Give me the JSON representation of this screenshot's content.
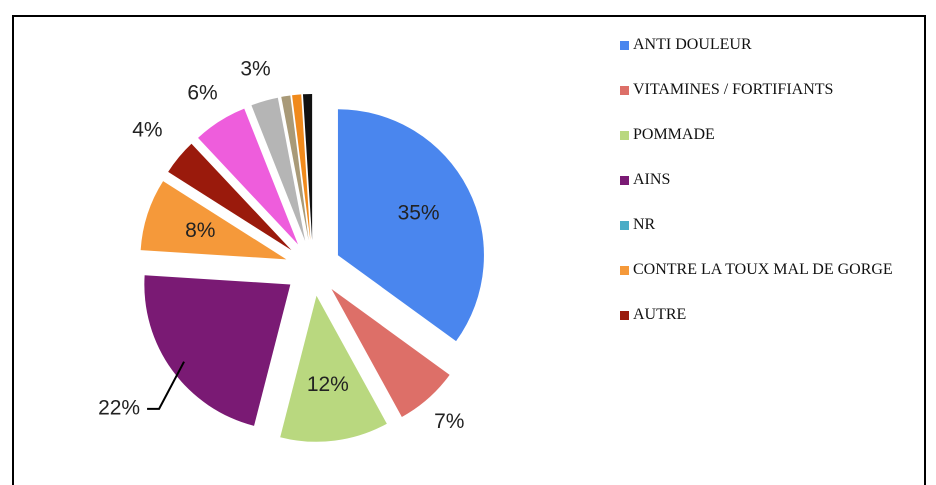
{
  "chart_data": {
    "type": "pie",
    "categories": [
      "ANTI DOULEUR",
      "VITAMINES / FORTIFIANTS",
      "POMMADE",
      "AINS",
      "NR",
      "CONTRE LA TOUX MAL DE GORGE",
      "AUTRE",
      null,
      null,
      null,
      null,
      null
    ],
    "values": [
      35,
      7,
      12,
      22,
      0,
      8,
      4,
      6,
      3,
      1,
      1,
      1
    ],
    "value_labels": [
      "35%",
      "7%",
      "12%",
      "22%",
      null,
      "8%",
      "4%",
      "6%",
      "3%",
      null,
      null,
      null
    ],
    "colors": [
      "#4a86ee",
      "#dd6f68",
      "#b9d87f",
      "#7a1a74",
      "#4bacc6",
      "#f5993a",
      "#9a1a0c",
      "#ee5ddc",
      "#b5b5b5",
      "#a99a78",
      "#f08a1c",
      "#111111"
    ]
  }
}
